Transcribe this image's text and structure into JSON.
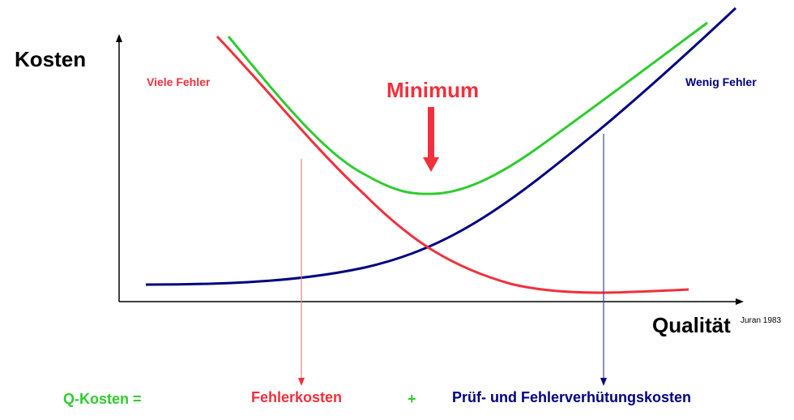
{
  "labels": {
    "y_axis": "Kosten",
    "x_axis": "Qualität",
    "source": "Juran 1983",
    "left_note": "Viele Fehler",
    "right_note": "Wenig Fehler",
    "minimum": "Minimum"
  },
  "equation": {
    "total": "Q-Kosten =",
    "failure": "Fehlerkosten",
    "plus": "+",
    "prevention": "Prüf- und Fehlerverhütungskosten"
  },
  "colors": {
    "total": "#2ecc2e",
    "failure": "#f0303c",
    "prevention": "#000080",
    "axis": "#000000",
    "failure_arrow": "#f08080",
    "prevention_arrow": "#4040a0"
  }
}
